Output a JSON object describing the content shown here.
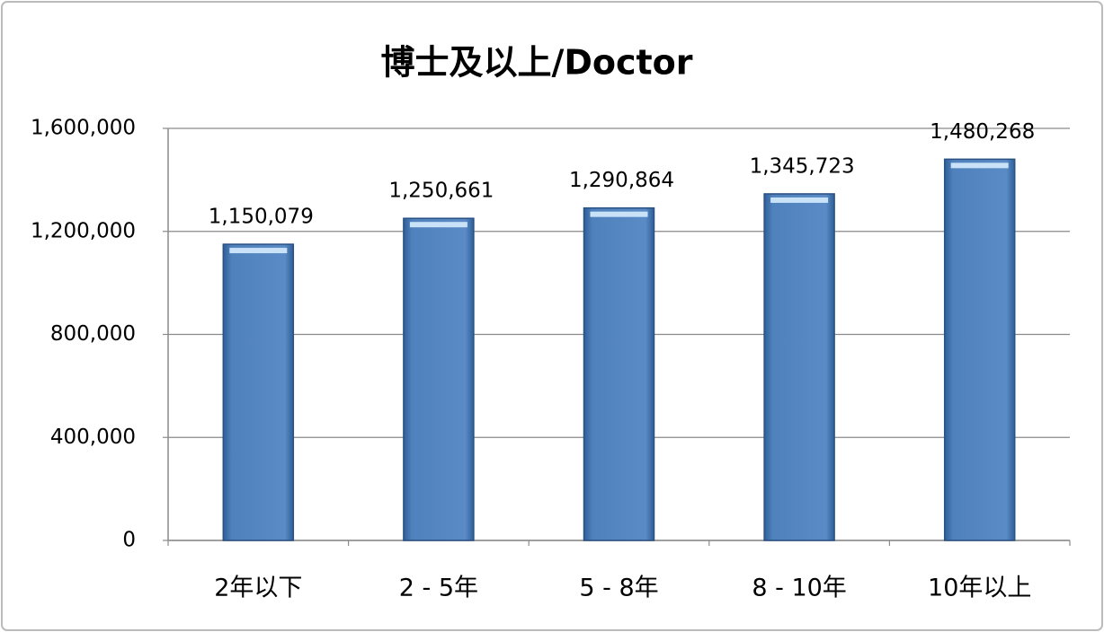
{
  "chart_data": {
    "type": "bar",
    "title": "博士及以上/Doctor",
    "categories": [
      "2年以下",
      "2 - 5年",
      "5 - 8年",
      "8 - 10年",
      "10年以上"
    ],
    "values": [
      1150079,
      1250661,
      1290864,
      1345723,
      1480268
    ],
    "value_labels": [
      "1,150,079",
      "1,250,661",
      "1,290,864",
      "1,345,723",
      "1,480,268"
    ],
    "color": "#4f81bd",
    "ylim": [
      0,
      1600000
    ],
    "yticks": [
      0,
      {
        "value": 400000,
        "label": "400,000"
      },
      {
        "value": 800000,
        "label": "800,000"
      },
      {
        "value": 1200000,
        "label": "1,200,000"
      },
      {
        "value": 1600000,
        "label": "1,600,000"
      }
    ],
    "grid": true
  }
}
